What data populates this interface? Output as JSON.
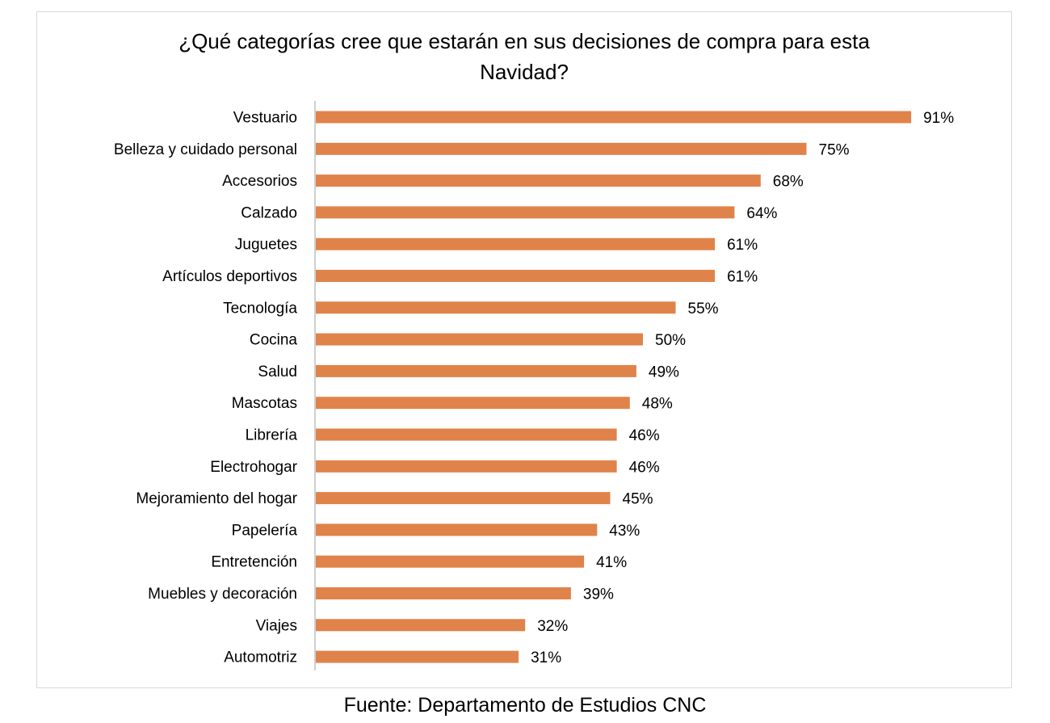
{
  "title_lines": [
    "¿Qué categorías cree que estarán en sus decisiones de compra para esta",
    "Navidad?"
  ],
  "source": "Fuente: Departamento de Estudios CNC",
  "colors": {
    "bar": "#E0834A",
    "axis": "#bfbfbf",
    "frame": "#d9d9d9",
    "text": "#000000"
  },
  "chart_data": {
    "type": "bar",
    "orientation": "horizontal",
    "title": "¿Qué categorías cree que estarán en sus decisiones de compra para esta Navidad?",
    "categories": [
      "Vestuario",
      "Belleza y cuidado personal",
      "Accesorios",
      "Calzado",
      "Juguetes",
      "Artículos deportivos",
      "Tecnología",
      "Cocina",
      "Salud",
      "Mascotas",
      "Librería",
      "Electrohogar",
      "Mejoramiento del hogar",
      "Papelería",
      "Entretención",
      "Muebles y decoración",
      "Viajes",
      "Automotriz"
    ],
    "values": [
      91,
      75,
      68,
      64,
      61,
      61,
      55,
      50,
      49,
      48,
      46,
      46,
      45,
      43,
      41,
      39,
      32,
      31
    ],
    "value_labels": [
      "91%",
      "75%",
      "68%",
      "64%",
      "61%",
      "61%",
      "55%",
      "50%",
      "49%",
      "48%",
      "46%",
      "46%",
      "45%",
      "43%",
      "41%",
      "39%",
      "32%",
      "31%"
    ],
    "xlim": [
      0,
      100
    ],
    "unit": "%",
    "grid": false,
    "legend": "none",
    "xlabel": "",
    "ylabel": ""
  }
}
